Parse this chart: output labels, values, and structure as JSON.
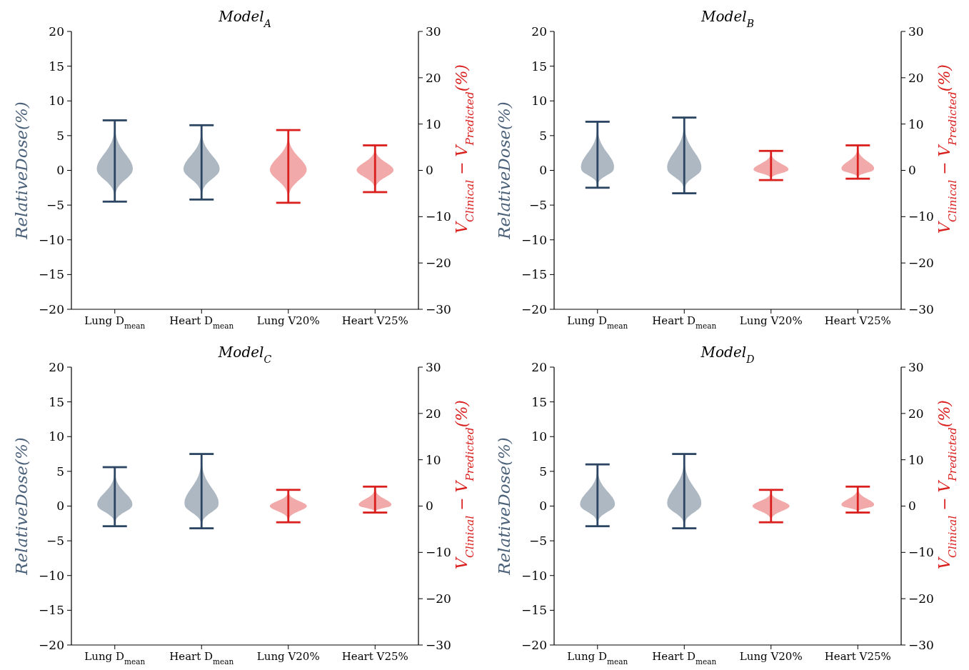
{
  "chart_data": [
    {
      "type": "bar",
      "title": "Model$_{A}$",
      "ylabel": "RelativeDose(%)",
      "y2label": "V$_{Clinical}$ − V$_{Predicted}$(%)",
      "categories": [
        "Lung D$_{mean}$",
        "Heart D$_{mean}$",
        "Lung V20%",
        "Heart V25%"
      ],
      "ylim": [
        -20,
        20
      ],
      "yticks": [
        -20,
        -15,
        -10,
        -5,
        0,
        5,
        10,
        15,
        20
      ],
      "y2lim": [
        -30,
        30
      ],
      "y2ticks": [
        -30,
        -20,
        -10,
        0,
        10,
        20,
        30
      ],
      "series": [
        {
          "color": "#2b4562",
          "base": [
            -4.5,
            -4.2,
            null,
            null
          ],
          "values": [
            11.7,
            10.7,
            null,
            null
          ]
        },
        {
          "color": "#d9201e",
          "axis": "y2",
          "base": [
            null,
            null,
            -7.0,
            -4.7
          ],
          "values": [
            null,
            null,
            15.7,
            10.1
          ]
        }
      ]
    },
    {
      "type": "bar",
      "title": "Model$_{B}$",
      "ylabel": "RelativeDose(%)",
      "y2label": "V$_{Clinical}$ − V$_{Predicted}$(%)",
      "categories": [
        "Lung D$_{mean}$",
        "Heart D$_{mean}$",
        "Lung V20%",
        "Heart V25%"
      ],
      "ylim": [
        -20,
        20
      ],
      "yticks": [
        -20,
        -15,
        -10,
        -5,
        0,
        5,
        10,
        15,
        20
      ],
      "y2lim": [
        -30,
        30
      ],
      "y2ticks": [
        -30,
        -20,
        -10,
        0,
        10,
        20,
        30
      ],
      "series": [
        {
          "color": "#2b4562",
          "base": [
            -2.5,
            -3.3,
            null,
            null
          ],
          "values": [
            9.5,
            10.9,
            null,
            null
          ]
        },
        {
          "color": "#d9201e",
          "axis": "y2",
          "base": [
            null,
            null,
            -2.1,
            -1.8
          ],
          "values": [
            null,
            null,
            6.3,
            7.2
          ]
        }
      ]
    },
    {
      "type": "bar",
      "title": "Model$_{C}$",
      "ylabel": "RelativeDose(%)",
      "y2label": "V$_{Clinical}$ − V$_{Predicted}$(%)",
      "categories": [
        "Lung D$_{mean}$",
        "Heart D$_{mean}$",
        "Lung V20%",
        "Heart V25%"
      ],
      "ylim": [
        -20,
        20
      ],
      "yticks": [
        -20,
        -15,
        -10,
        -5,
        0,
        5,
        10,
        15,
        20
      ],
      "y2lim": [
        -30,
        30
      ],
      "y2ticks": [
        -30,
        -20,
        -10,
        0,
        10,
        20,
        30
      ],
      "series": [
        {
          "color": "#2b4562",
          "base": [
            -2.9,
            -3.2,
            null,
            null
          ],
          "values": [
            8.5,
            10.7,
            null,
            null
          ]
        },
        {
          "color": "#d9201e",
          "axis": "y2",
          "base": [
            null,
            null,
            -3.5,
            -1.4
          ],
          "values": [
            null,
            null,
            7.0,
            5.6
          ]
        }
      ]
    },
    {
      "type": "bar",
      "title": "Model$_{D}$",
      "ylabel": "RelativeDose(%)",
      "y2label": "V$_{Clinical}$ − V$_{Predicted}$(%)",
      "categories": [
        "Lung D$_{mean}$",
        "Heart D$_{mean}$",
        "Lung V20%",
        "Heart V25%"
      ],
      "ylim": [
        -20,
        20
      ],
      "yticks": [
        -20,
        -15,
        -10,
        -5,
        0,
        5,
        10,
        15,
        20
      ],
      "y2lim": [
        -30,
        30
      ],
      "y2ticks": [
        -30,
        -20,
        -10,
        0,
        10,
        20,
        30
      ],
      "series": [
        {
          "color": "#2b4562",
          "base": [
            -2.9,
            -3.2,
            null,
            null
          ],
          "values": [
            8.9,
            10.7,
            null,
            null
          ]
        },
        {
          "color": "#d9201e",
          "axis": "y2",
          "base": [
            null,
            null,
            -3.5,
            -1.4
          ],
          "values": [
            null,
            null,
            7.0,
            5.6
          ]
        }
      ]
    }
  ]
}
